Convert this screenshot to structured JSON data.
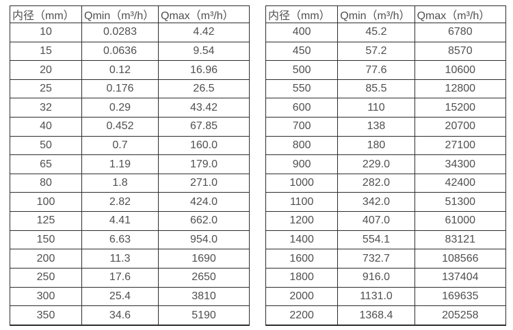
{
  "columns": [
    "内径（mm）",
    "Qmin（m³/h）",
    "Qmax（m³/h）"
  ],
  "text_color": "#4f4f4f",
  "border_color": "#2b2b2b",
  "tables": [
    {
      "name": "small-diameter-flow-table",
      "rows": [
        [
          "10",
          "0.0283",
          "4.42"
        ],
        [
          "15",
          "0.0636",
          "9.54"
        ],
        [
          "20",
          "0.12",
          "16.96"
        ],
        [
          "25",
          "0.176",
          "26.5"
        ],
        [
          "32",
          "0.29",
          "43.42"
        ],
        [
          "40",
          "0.452",
          "67.85"
        ],
        [
          "50",
          "0.7",
          "160.0"
        ],
        [
          "65",
          "1.19",
          "179.0"
        ],
        [
          "80",
          "1.8",
          "271.0"
        ],
        [
          "100",
          "2.82",
          "424.0"
        ],
        [
          "125",
          "4.41",
          "662.0"
        ],
        [
          "150",
          "6.63",
          "954.0"
        ],
        [
          "200",
          "11.3",
          "1690"
        ],
        [
          "250",
          "17.6",
          "2650"
        ],
        [
          "300",
          "25.4",
          "3810"
        ],
        [
          "350",
          "34.6",
          "5190"
        ]
      ]
    },
    {
      "name": "large-diameter-flow-table",
      "rows": [
        [
          "400",
          "45.2",
          "6780"
        ],
        [
          "450",
          "57.2",
          "8570"
        ],
        [
          "500",
          "77.6",
          "10600"
        ],
        [
          "550",
          "85.5",
          "12800"
        ],
        [
          "600",
          "110",
          "15200"
        ],
        [
          "700",
          "138",
          "20700"
        ],
        [
          "800",
          "180",
          "27100"
        ],
        [
          "900",
          "229.0",
          "34300"
        ],
        [
          "1000",
          "282.0",
          "42400"
        ],
        [
          "1100",
          "342.0",
          "51300"
        ],
        [
          "1200",
          "407.0",
          "61000"
        ],
        [
          "1400",
          "554.1",
          "83121"
        ],
        [
          "1600",
          "732.7",
          "108566"
        ],
        [
          "1800",
          "916.0",
          "137404"
        ],
        [
          "2000",
          "1131.0",
          "169635"
        ],
        [
          "2200",
          "1368.4",
          "205258"
        ]
      ]
    }
  ]
}
